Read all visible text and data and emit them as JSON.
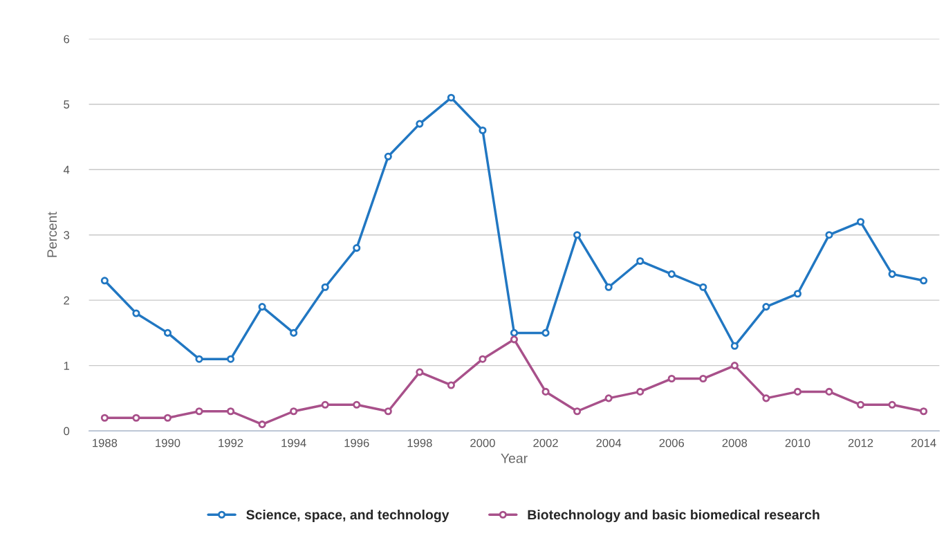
{
  "chart_data": {
    "type": "line",
    "xlabel": "Year",
    "ylabel": "Percent",
    "categories": [
      "1988",
      null,
      "1990",
      null,
      "1992",
      null,
      "1994",
      null,
      "1996",
      null,
      "1998",
      null,
      "2000",
      null,
      "2002",
      null,
      "2004",
      null,
      "2006",
      null,
      "2008",
      null,
      "2010",
      null,
      "2012",
      null,
      "2014"
    ],
    "series": [
      {
        "name": "Science, space, and technology",
        "color": "#2177c2",
        "values": [
          2.3,
          1.8,
          1.5,
          1.1,
          1.1,
          1.9,
          1.5,
          2.2,
          2.8,
          4.2,
          4.7,
          5.1,
          4.6,
          1.5,
          1.5,
          3.0,
          2.2,
          2.6,
          2.4,
          2.2,
          1.3,
          1.9,
          2.1,
          3.0,
          3.2,
          2.4,
          2.3
        ]
      },
      {
        "name": "Biotechnology and basic biomedical research",
        "color": "#a8508a",
        "values": [
          0.2,
          0.2,
          0.2,
          0.3,
          0.3,
          0.1,
          0.3,
          0.4,
          0.4,
          0.3,
          0.9,
          0.7,
          1.1,
          1.4,
          0.6,
          0.3,
          0.5,
          0.6,
          0.8,
          0.8,
          1.0,
          0.5,
          0.6,
          0.6,
          0.4,
          0.4,
          0.3
        ]
      }
    ],
    "ylim": [
      0,
      6
    ],
    "yticks": [
      0,
      1,
      2,
      3,
      4,
      5,
      6
    ],
    "grid": "y",
    "legend": "bottom",
    "marker": "circle",
    "line_style": "solid"
  }
}
